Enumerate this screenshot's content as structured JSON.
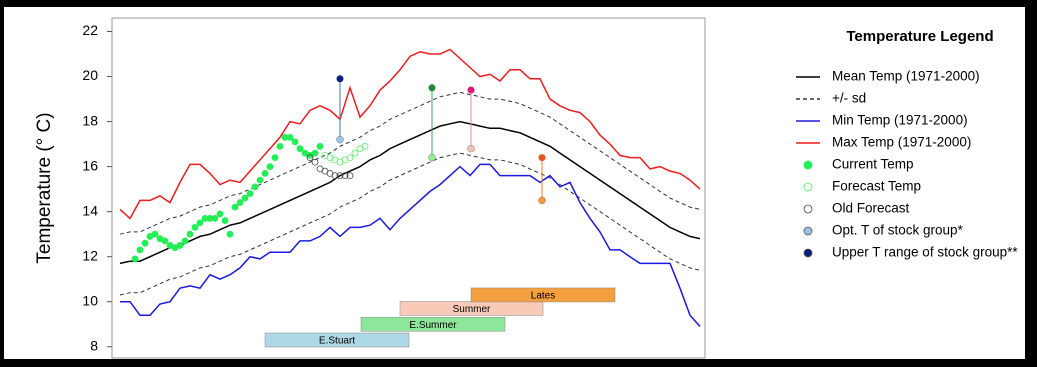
{
  "chart_data": {
    "type": "line",
    "ylabel": "Temperature (° C)",
    "ylim": [
      7.5,
      22.6
    ],
    "yticks": [
      8,
      10,
      12,
      14,
      16,
      18,
      20,
      22
    ],
    "xlim": [
      -0.8,
      58.5
    ],
    "legend_title": "Temperature Legend",
    "legend": "right",
    "series": [
      {
        "name": "Mean Temp (1971-2000)",
        "color": "#000000",
        "style": "solid",
        "x": [
          0,
          1,
          2,
          3,
          4,
          5,
          6,
          7,
          8,
          9,
          10,
          11,
          12,
          13,
          14,
          15,
          16,
          17,
          18,
          19,
          20,
          21,
          22,
          23,
          24,
          25,
          26,
          27,
          28,
          29,
          30,
          31,
          32,
          33,
          34,
          35,
          36,
          37,
          38,
          39,
          40,
          41,
          42,
          43,
          44,
          45,
          46,
          47,
          48,
          49,
          50,
          51,
          52,
          53,
          54,
          55,
          56,
          57,
          58
        ],
        "values": [
          11.7,
          11.8,
          11.8,
          12.0,
          12.2,
          12.4,
          12.5,
          12.7,
          12.9,
          13.0,
          13.2,
          13.4,
          13.5,
          13.7,
          13.9,
          14.1,
          14.3,
          14.5,
          14.7,
          14.9,
          15.1,
          15.3,
          15.6,
          15.8,
          16.0,
          16.3,
          16.5,
          16.8,
          17.0,
          17.2,
          17.4,
          17.6,
          17.8,
          17.9,
          18.0,
          17.9,
          17.8,
          17.7,
          17.7,
          17.6,
          17.5,
          17.3,
          17.1,
          16.9,
          16.6,
          16.3,
          16.0,
          15.7,
          15.4,
          15.1,
          14.8,
          14.5,
          14.2,
          13.9,
          13.6,
          13.3,
          13.1,
          12.9,
          12.8
        ]
      },
      {
        "name": "+/- sd",
        "color": "#333333",
        "style": "dashed",
        "x": [
          0,
          1,
          2,
          3,
          4,
          5,
          6,
          7,
          8,
          9,
          10,
          11,
          12,
          13,
          14,
          15,
          16,
          17,
          18,
          19,
          20,
          21,
          22,
          23,
          24,
          25,
          26,
          27,
          28,
          29,
          30,
          31,
          32,
          33,
          34,
          35,
          36,
          37,
          38,
          39,
          40,
          41,
          42,
          43,
          44,
          45,
          46,
          47,
          48,
          49,
          50,
          51,
          52,
          53,
          54,
          55,
          56,
          57,
          58
        ],
        "values": [
          13.0,
          13.1,
          13.1,
          13.3,
          13.5,
          13.7,
          13.8,
          14.0,
          14.2,
          14.3,
          14.5,
          14.7,
          14.8,
          15.0,
          15.2,
          15.4,
          15.6,
          15.8,
          16.0,
          16.2,
          16.4,
          16.6,
          16.9,
          17.1,
          17.3,
          17.6,
          17.8,
          18.1,
          18.3,
          18.5,
          18.7,
          18.9,
          19.1,
          19.2,
          19.3,
          19.2,
          19.1,
          19.0,
          19.0,
          18.9,
          18.8,
          18.6,
          18.4,
          18.2,
          17.9,
          17.6,
          17.3,
          17.0,
          16.7,
          16.4,
          16.1,
          15.8,
          15.5,
          15.2,
          14.9,
          14.6,
          14.4,
          14.2,
          14.1
        ],
        "values_lower": [
          10.3,
          10.4,
          10.4,
          10.6,
          10.8,
          11.0,
          11.1,
          11.3,
          11.5,
          11.6,
          11.8,
          12.0,
          12.1,
          12.3,
          12.5,
          12.7,
          12.9,
          13.1,
          13.3,
          13.5,
          13.7,
          13.9,
          14.2,
          14.4,
          14.6,
          14.9,
          15.1,
          15.4,
          15.6,
          15.8,
          16.0,
          16.2,
          16.4,
          16.5,
          16.6,
          16.5,
          16.4,
          16.3,
          16.3,
          16.2,
          16.1,
          15.9,
          15.7,
          15.5,
          15.2,
          14.9,
          14.6,
          14.3,
          14.0,
          13.7,
          13.4,
          13.1,
          12.8,
          12.5,
          12.2,
          11.9,
          11.7,
          11.5,
          11.4
        ]
      },
      {
        "name": "Min Temp (1971-2000)",
        "color": "#1a1adf",
        "style": "solid",
        "x": [
          0,
          1,
          2,
          3,
          4,
          5,
          6,
          7,
          8,
          9,
          10,
          11,
          12,
          13,
          14,
          15,
          16,
          17,
          18,
          19,
          20,
          21,
          22,
          23,
          24,
          25,
          26,
          27,
          28,
          29,
          30,
          31,
          32,
          33,
          34,
          35,
          36,
          37,
          38,
          39,
          40,
          41,
          42,
          43,
          44,
          45,
          46,
          47,
          48,
          49,
          50,
          51,
          52,
          53,
          54,
          55,
          56,
          57,
          58
        ],
        "values": [
          10.0,
          10.0,
          9.4,
          9.4,
          9.9,
          10.0,
          10.6,
          10.7,
          10.6,
          11.2,
          11.0,
          11.2,
          11.5,
          12.0,
          11.9,
          12.2,
          12.2,
          12.2,
          12.7,
          12.7,
          12.9,
          13.3,
          12.9,
          13.3,
          13.3,
          13.4,
          13.7,
          13.2,
          13.7,
          14.1,
          14.5,
          14.9,
          15.2,
          15.6,
          16.0,
          15.6,
          16.1,
          16.1,
          15.6,
          15.6,
          15.6,
          15.6,
          15.3,
          15.6,
          15.1,
          15.3,
          14.4,
          13.7,
          13.1,
          12.3,
          12.3,
          12.0,
          11.7,
          11.7,
          11.7,
          11.7,
          10.6,
          9.4,
          8.9
        ]
      },
      {
        "name": "Max Temp (1971-2000)",
        "color": "#ee1c1c",
        "style": "solid",
        "x": [
          0,
          1,
          2,
          3,
          4,
          5,
          6,
          7,
          8,
          9,
          10,
          11,
          12,
          13,
          14,
          15,
          16,
          17,
          18,
          19,
          20,
          21,
          22,
          23,
          24,
          25,
          26,
          27,
          28,
          29,
          30,
          31,
          32,
          33,
          34,
          35,
          36,
          37,
          38,
          39,
          40,
          41,
          42,
          43,
          44,
          45,
          46,
          47,
          48,
          49,
          50,
          51,
          52,
          53,
          54,
          55,
          56,
          57,
          58
        ],
        "values": [
          14.1,
          13.7,
          14.5,
          14.5,
          14.7,
          14.4,
          15.3,
          16.1,
          16.1,
          15.7,
          15.2,
          15.4,
          15.3,
          15.8,
          16.3,
          16.8,
          17.3,
          18.0,
          17.9,
          18.5,
          18.7,
          18.5,
          18.1,
          19.5,
          18.2,
          18.7,
          19.4,
          19.8,
          20.3,
          20.9,
          21.1,
          21.0,
          21.0,
          21.2,
          20.8,
          20.4,
          20.0,
          20.1,
          19.8,
          20.3,
          20.3,
          19.9,
          19.9,
          19.0,
          18.7,
          18.5,
          18.4,
          18.0,
          17.4,
          17.0,
          16.5,
          16.4,
          16.4,
          15.9,
          16.0,
          15.8,
          15.7,
          15.4,
          15.0
        ]
      },
      {
        "name": "Current Temp",
        "color": "#22ee55",
        "style": "dot",
        "x": [
          1.5,
          2,
          2.5,
          3,
          3.5,
          4,
          4.5,
          5,
          5.5,
          6,
          6.5,
          7,
          7.5,
          8,
          8.5,
          9,
          9.5,
          10,
          10.5,
          11,
          11.5,
          12,
          12.5,
          13,
          13.5,
          14,
          14.5,
          15,
          15.5,
          16,
          16.5,
          17,
          17.5,
          18,
          18.5,
          19,
          19.5,
          20
        ],
        "values": [
          11.9,
          12.3,
          12.6,
          12.9,
          13.0,
          12.8,
          12.7,
          12.5,
          12.4,
          12.5,
          12.7,
          13.0,
          13.3,
          13.5,
          13.7,
          13.7,
          13.7,
          13.9,
          13.6,
          13.0,
          14.2,
          14.4,
          14.6,
          14.8,
          15.1,
          15.4,
          15.7,
          16.0,
          16.4,
          16.9,
          17.3,
          17.3,
          17.1,
          16.8,
          16.6,
          16.5,
          16.6,
          16.9
        ]
      },
      {
        "name": "Forecast Temp",
        "color": "#55ee66",
        "style": "hollow",
        "x": [
          20.5,
          21,
          21.5,
          22,
          22.5,
          23,
          23.5,
          24,
          24.5
        ],
        "values": [
          16.5,
          16.4,
          16.3,
          16.2,
          16.3,
          16.4,
          16.6,
          16.8,
          16.9
        ]
      },
      {
        "name": "Old Forecast",
        "color": "#444444",
        "style": "hollow",
        "x": [
          19,
          19.5,
          20,
          20.5,
          21,
          21.5,
          22,
          22.5,
          23
        ],
        "values": [
          16.4,
          16.2,
          15.9,
          15.8,
          15.7,
          15.6,
          15.6,
          15.6,
          15.6
        ]
      },
      {
        "name": "Opt. T of stock group*",
        "color": "#9cc3e6",
        "style": "dot"
      },
      {
        "name": "Upper T range of stock group**",
        "color": "#0b1f7a",
        "style": "dot"
      }
    ],
    "stock_groups": [
      {
        "name": "E.Stuart",
        "x": 22,
        "opt": 17.2,
        "upper": 19.9,
        "opt_color": "#9cc3e6",
        "upper_color": "#0b1f7a",
        "line_color": "#4a6fb8",
        "bar": [
          14.5,
          28.9
        ],
        "bar_y": 8.3,
        "bar_color": "#add8e6"
      },
      {
        "name": "E.Summer",
        "x": 31.2,
        "opt": 16.4,
        "upper": 19.5,
        "opt_color": "#90ee90",
        "upper_color": "#1a8a3a",
        "line_color": "#3aa85a",
        "bar": [
          24.1,
          38.5
        ],
        "bar_y": 9.0,
        "bar_color": "#8ee69a"
      },
      {
        "name": "Summer",
        "x": 35.1,
        "opt": 16.8,
        "upper": 19.4,
        "opt_color": "#f4c2b0",
        "upper_color": "#e6157a",
        "line_color": "#e88aa0",
        "bar": [
          28.0,
          42.3
        ],
        "bar_y": 9.7,
        "bar_color": "#f8cbb8"
      },
      {
        "name": "Lates",
        "x": 42.2,
        "opt": 14.5,
        "upper": 16.4,
        "opt_color": "#f39c3a",
        "upper_color": "#e8551f",
        "line_color": "#ee7a3a",
        "bar": [
          35.1,
          49.5
        ],
        "bar_y": 10.3,
        "bar_color": "#f5a040"
      }
    ]
  }
}
